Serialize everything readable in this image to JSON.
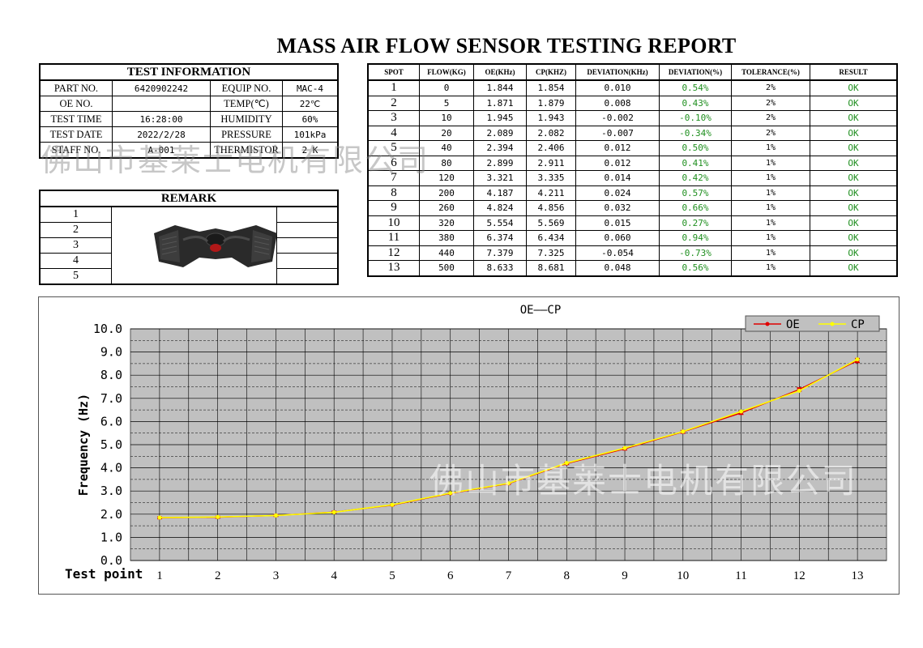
{
  "title": "MASS AIR FLOW SENSOR  TESTING REPORT",
  "test_information": {
    "heading": "TEST INFORMATION",
    "rows": [
      {
        "label1": "PART NO.",
        "value1": "6420902242",
        "label2": "EQUIP NO.",
        "value2": "MAC-4"
      },
      {
        "label1": "OE NO.",
        "value1": "",
        "label2": "TEMP(℃)",
        "value2": "22℃"
      },
      {
        "label1": "TEST TIME",
        "value1": "16:28:00",
        "label2": "HUMIDITY",
        "value2": "60%"
      },
      {
        "label1": "TEST DATE",
        "value1": "2022/2/28",
        "label2": "PRESSURE",
        "value2": "101kPa"
      },
      {
        "label1": "STAFF NO.",
        "value1": "A-001",
        "label2": "THERMISTOR",
        "value2": "2 K"
      }
    ]
  },
  "remark": {
    "heading": "REMARK",
    "rows": [
      "1",
      "2",
      "3",
      "4",
      "5"
    ],
    "image_icon": "air-flow-sensor-part-photo"
  },
  "spot_table": {
    "headers": [
      "SPOT",
      "FLOW(KG)",
      "OE(KHz)",
      "CP(KHZ)",
      "DEVIATION(KHz)",
      "DEVIATION(%)",
      "TOLERANCE(%)",
      "RESULT"
    ],
    "rows": [
      [
        "1",
        "0",
        "1.844",
        "1.854",
        "0.010",
        "0.54%",
        "2%",
        "OK"
      ],
      [
        "2",
        "5",
        "1.871",
        "1.879",
        "0.008",
        "0.43%",
        "2%",
        "OK"
      ],
      [
        "3",
        "10",
        "1.945",
        "1.943",
        "-0.002",
        "-0.10%",
        "2%",
        "OK"
      ],
      [
        "4",
        "20",
        "2.089",
        "2.082",
        "-0.007",
        "-0.34%",
        "2%",
        "OK"
      ],
      [
        "5",
        "40",
        "2.394",
        "2.406",
        "0.012",
        "0.50%",
        "1%",
        "OK"
      ],
      [
        "6",
        "80",
        "2.899",
        "2.911",
        "0.012",
        "0.41%",
        "1%",
        "OK"
      ],
      [
        "7",
        "120",
        "3.321",
        "3.335",
        "0.014",
        "0.42%",
        "1%",
        "OK"
      ],
      [
        "8",
        "200",
        "4.187",
        "4.211",
        "0.024",
        "0.57%",
        "1%",
        "OK"
      ],
      [
        "9",
        "260",
        "4.824",
        "4.856",
        "0.032",
        "0.66%",
        "1%",
        "OK"
      ],
      [
        "10",
        "320",
        "5.554",
        "5.569",
        "0.015",
        "0.27%",
        "1%",
        "OK"
      ],
      [
        "11",
        "380",
        "6.374",
        "6.434",
        "0.060",
        "0.94%",
        "1%",
        "OK"
      ],
      [
        "12",
        "440",
        "7.379",
        "7.325",
        "-0.054",
        "-0.73%",
        "1%",
        "OK"
      ],
      [
        "13",
        "500",
        "8.633",
        "8.681",
        "0.048",
        "0.56%",
        "1%",
        "OK"
      ]
    ],
    "green_color": "#1f8f1f"
  },
  "watermark_text": "佛山市基莱士电机有限公司",
  "chart_data": {
    "type": "line",
    "title": "OE——CP",
    "xlabel": "Test point",
    "ylabel": "Frequency (Hz)",
    "categories": [
      "1",
      "2",
      "3",
      "4",
      "5",
      "6",
      "7",
      "8",
      "9",
      "10",
      "11",
      "12",
      "13"
    ],
    "ylim": [
      0,
      10
    ],
    "yticks": [
      "0.0",
      "1.0",
      "2.0",
      "3.0",
      "4.0",
      "5.0",
      "6.0",
      "7.0",
      "8.0",
      "9.0",
      "10.0"
    ],
    "grid": true,
    "legend_position": "top-right",
    "plot_background": "#c0c0c0",
    "series": [
      {
        "name": "OE",
        "color": "#e00000",
        "values": [
          1.844,
          1.871,
          1.945,
          2.089,
          2.394,
          2.899,
          3.321,
          4.187,
          4.824,
          5.554,
          6.374,
          7.379,
          8.633
        ]
      },
      {
        "name": "CP",
        "color": "#ffff00",
        "values": [
          1.854,
          1.879,
          1.943,
          2.082,
          2.406,
          2.911,
          3.335,
          4.211,
          4.856,
          5.569,
          6.434,
          7.325,
          8.681
        ]
      }
    ],
    "error_bar_percent": [
      2,
      2,
      2,
      2,
      1,
      1,
      1,
      1,
      1,
      1,
      1,
      1,
      1
    ]
  }
}
